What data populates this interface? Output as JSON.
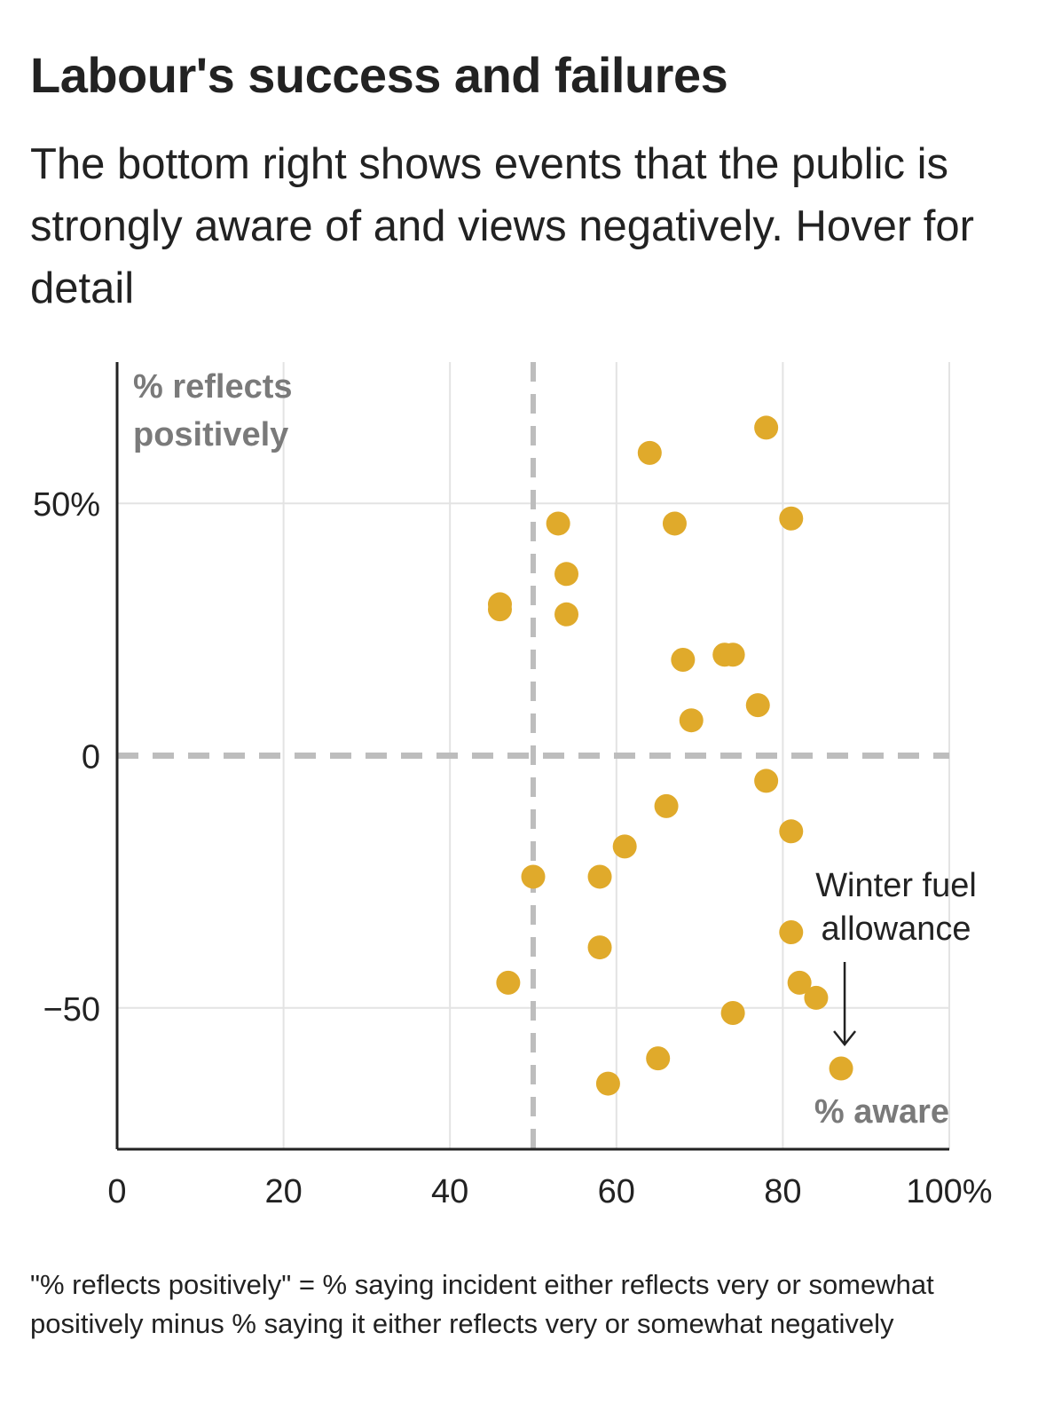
{
  "title": "Labour's success and failures",
  "subtitle": "The bottom right shows events that the public is strongly aware of and views negatively. Hover for detail",
  "footnote": "\"% reflects positively\" = % saying incident either reflects very or somewhat positively minus % saying it either reflects very or somewhat negatively",
  "colors": {
    "point": "#E0AA2B",
    "grid": "#e3e3e3",
    "reference": "#bdbdbd",
    "axis": "#222222",
    "axis_title": "#7a7a7a"
  },
  "chart_data": {
    "type": "scatter",
    "xlabel": "% aware",
    "ylabel_lines": [
      "% reflects",
      "positively"
    ],
    "xlim": [
      0,
      100
    ],
    "ylim": [
      -78,
      78
    ],
    "x_ticks": [
      {
        "value": 0,
        "label": "0"
      },
      {
        "value": 20,
        "label": "20"
      },
      {
        "value": 40,
        "label": "40"
      },
      {
        "value": 60,
        "label": "60"
      },
      {
        "value": 80,
        "label": "80"
      },
      {
        "value": 100,
        "label": "100%"
      }
    ],
    "y_ticks": [
      {
        "value": 50,
        "label": "50%"
      },
      {
        "value": 0,
        "label": "0"
      },
      {
        "value": -50,
        "label": "−50"
      }
    ],
    "reference_lines": {
      "x": 50,
      "y": 0
    },
    "annotation": {
      "lines": [
        "Winter fuel",
        "allowance"
      ],
      "target": [
        87,
        -62
      ]
    },
    "points": [
      [
        78,
        65
      ],
      [
        64,
        60
      ],
      [
        53,
        46
      ],
      [
        67,
        46
      ],
      [
        81,
        47
      ],
      [
        54,
        36
      ],
      [
        46,
        30
      ],
      [
        46,
        29
      ],
      [
        54,
        28
      ],
      [
        68,
        19
      ],
      [
        73,
        20
      ],
      [
        74,
        20
      ],
      [
        77,
        10
      ],
      [
        69,
        7
      ],
      [
        78,
        -5
      ],
      [
        66,
        -10
      ],
      [
        81,
        -15
      ],
      [
        61,
        -18
      ],
      [
        50,
        -24
      ],
      [
        58,
        -24
      ],
      [
        81,
        -35
      ],
      [
        58,
        -38
      ],
      [
        47,
        -45
      ],
      [
        82,
        -45
      ],
      [
        84,
        -48
      ],
      [
        74,
        -51
      ],
      [
        65,
        -60
      ],
      [
        87,
        -62
      ],
      [
        59,
        -65
      ]
    ]
  }
}
